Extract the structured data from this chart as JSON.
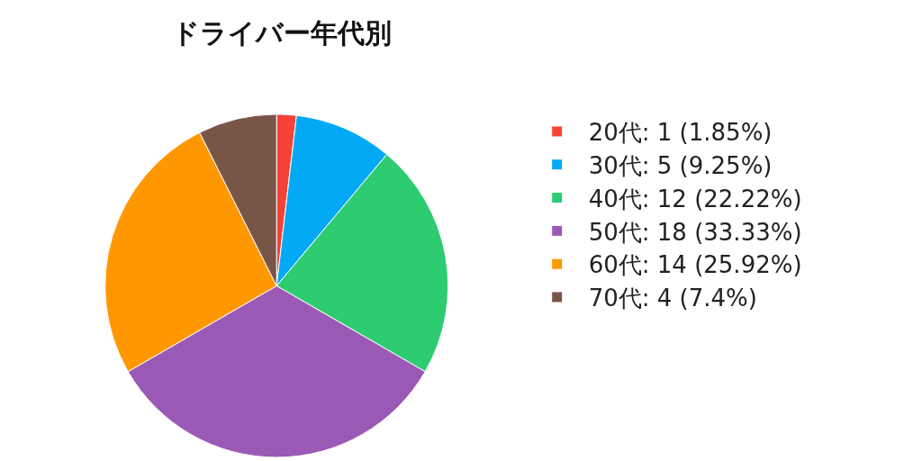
{
  "chart_data": {
    "type": "pie",
    "title": "ドライバー年代別",
    "categories": [
      "20代: 1 (1.85%)",
      "30代: 5 (9.25%)",
      "40代: 12 (22.22%)",
      "50代: 18 (33.33%)",
      "60代: 14 (25.92%)",
      "70代: 4 (7.4%)"
    ],
    "values": [
      1,
      5,
      12,
      18,
      14,
      4
    ],
    "colors": [
      "#f44336",
      "#03a9f4",
      "#2ecc71",
      "#9b59b6",
      "#ff9800",
      "#795548"
    ],
    "legend": "right"
  }
}
